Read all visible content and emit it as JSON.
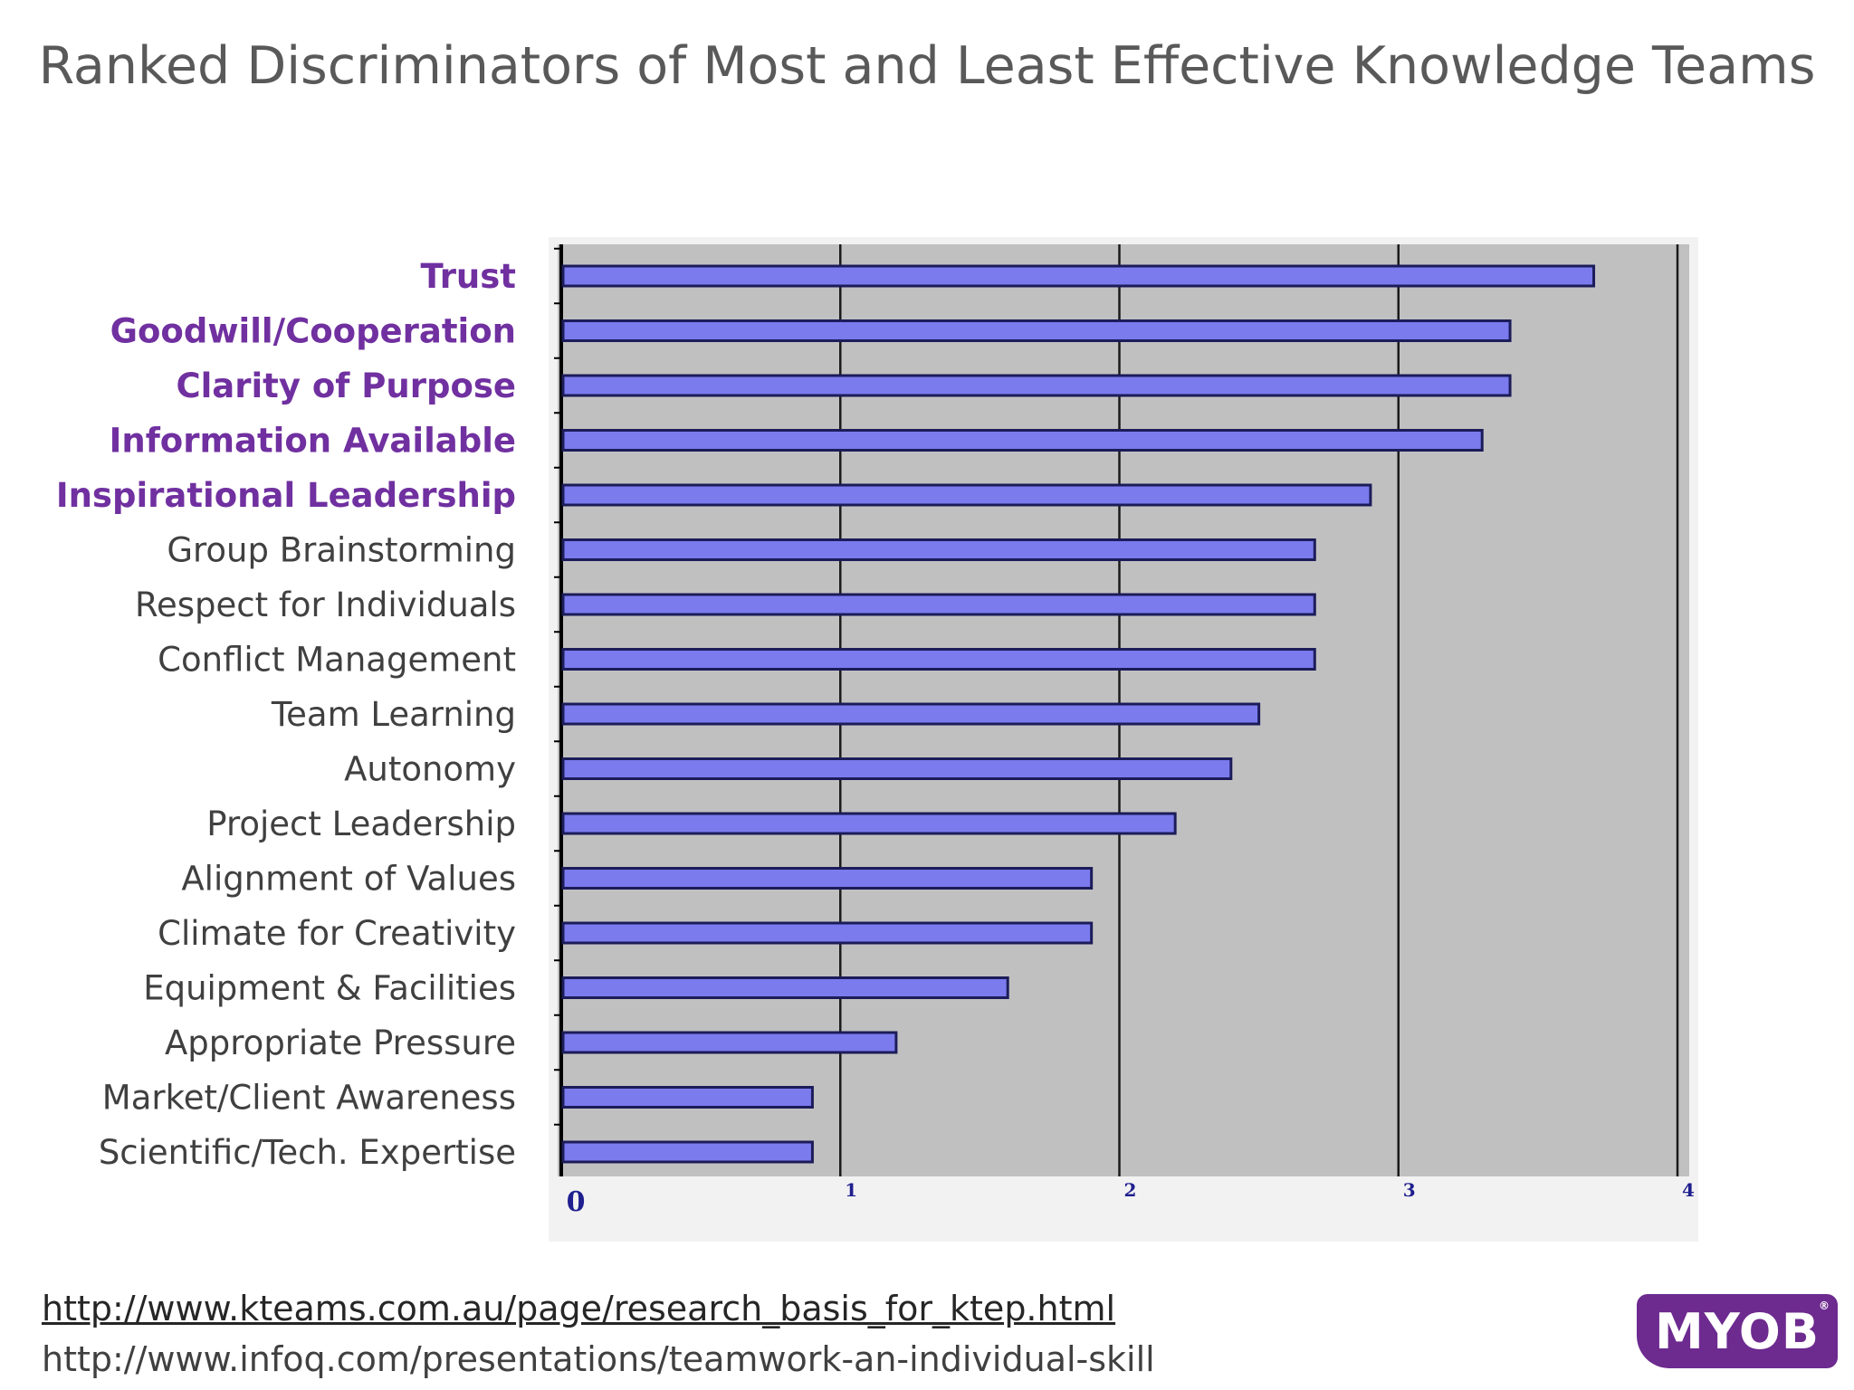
{
  "slide": {
    "title": "Ranked Discriminators of Most and Least Effective Knowledge Teams",
    "links": [
      "http://www.kteams.com.au/page/research_basis_for_ktep.html",
      "http://www.infoq.com/presentations/teamwork-an-individual-skill"
    ],
    "logo_text": "MYOB",
    "logo_mark": "®"
  },
  "colors": {
    "bar_fill": "#7b7bee",
    "bar_stroke": "#1c1c5a",
    "plot_bg": "#c0c0c0",
    "highlight_label": "#7030a0",
    "normal_label": "#404040",
    "logo_bg": "#6d2a8f"
  },
  "chart_data": {
    "type": "bar",
    "orientation": "horizontal",
    "title": "",
    "xlabel": "",
    "ylabel": "",
    "xlim": [
      0,
      4
    ],
    "ticks": [
      0,
      1,
      2,
      3,
      4
    ],
    "grid": true,
    "categories": [
      "Trust",
      "Goodwill/Cooperation",
      "Clarity of Purpose",
      "Information Available",
      "Inspirational Leadership",
      "Group Brainstorming",
      "Respect for Individuals",
      "Conflict Management",
      "Team Learning",
      "Autonomy",
      "Project Leadership",
      "Alignment of Values",
      "Climate for Creativity",
      "Equipment & Facilities",
      "Appropriate Pressure",
      "Market/Client Awareness",
      "Scientific/Tech. Expertise"
    ],
    "values": [
      3.7,
      3.4,
      3.4,
      3.3,
      2.9,
      2.7,
      2.7,
      2.7,
      2.5,
      2.4,
      2.2,
      1.9,
      1.9,
      1.6,
      1.2,
      0.9,
      0.9
    ],
    "highlighted": [
      true,
      true,
      true,
      true,
      true,
      false,
      false,
      false,
      false,
      false,
      false,
      false,
      false,
      false,
      false,
      false,
      false
    ]
  }
}
